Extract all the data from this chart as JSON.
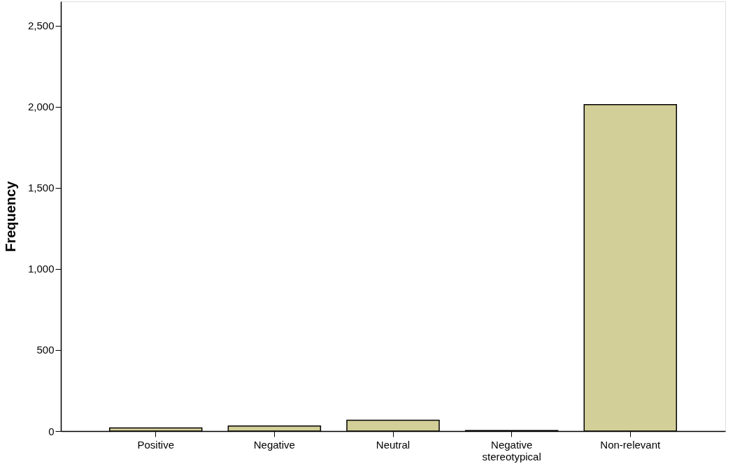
{
  "chart_data": {
    "type": "bar",
    "ylabel": "Frequency",
    "categories": [
      "Positive",
      "Negative",
      "Neutral",
      "Negative stereotypical",
      "Non-relevant"
    ],
    "values": [
      19,
      31,
      67,
      3,
      2013
    ],
    "color": "#d3cf98",
    "ylim": [
      0,
      2650
    ],
    "yticks": [
      {
        "value": 0,
        "label": "0"
      },
      {
        "value": 500,
        "label": "500"
      },
      {
        "value": 1000,
        "label": "1,000"
      },
      {
        "value": 1500,
        "label": "1,500"
      },
      {
        "value": 2000,
        "label": "2,000"
      },
      {
        "value": 2500,
        "label": "2,500"
      }
    ],
    "grid": false
  }
}
